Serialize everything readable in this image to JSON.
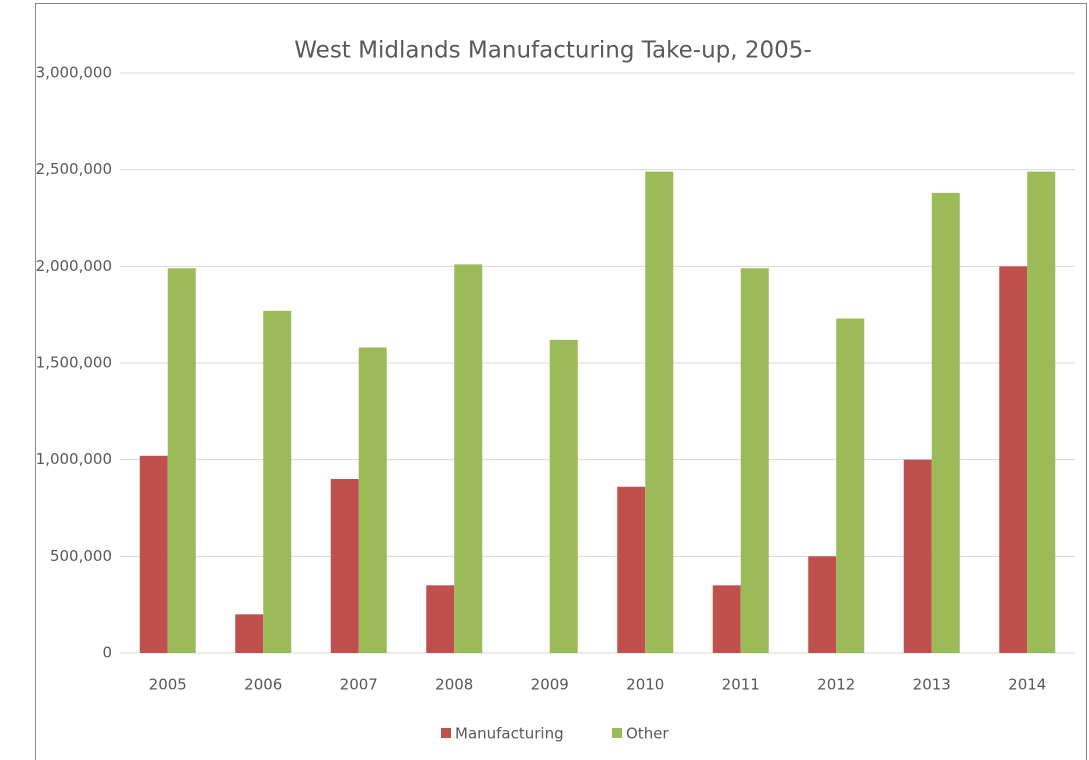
{
  "chart_data": {
    "type": "bar",
    "title": "West Midlands Manufacturing Take-up, 2005-",
    "categories": [
      "2005",
      "2006",
      "2007",
      "2008",
      "2009",
      "2010",
      "2011",
      "2012",
      "2013",
      "2014"
    ],
    "series": [
      {
        "name": "Manufacturing",
        "color": "#c0504d",
        "values": [
          1020000,
          200000,
          900000,
          350000,
          0,
          860000,
          350000,
          500000,
          1000000,
          2000000
        ]
      },
      {
        "name": "Other",
        "color": "#9bbb59",
        "values": [
          1990000,
          1770000,
          1580000,
          2010000,
          1620000,
          2490000,
          1990000,
          1730000,
          2380000,
          2490000
        ]
      }
    ],
    "ylim": [
      0,
      3000000
    ],
    "yticks": [
      0,
      {
        "value": 500000,
        "label": "500,000"
      },
      {
        "value": 1000000,
        "label": "1,000,000"
      },
      {
        "value": 1500000,
        "label": "1,500,000"
      },
      {
        "value": 2000000,
        "label": "2,000,000"
      },
      {
        "value": 2500000,
        "label": "2,500,000"
      },
      {
        "value": 3000000,
        "label": "3,000,000"
      }
    ],
    "grid": true,
    "legend": "bottom"
  }
}
